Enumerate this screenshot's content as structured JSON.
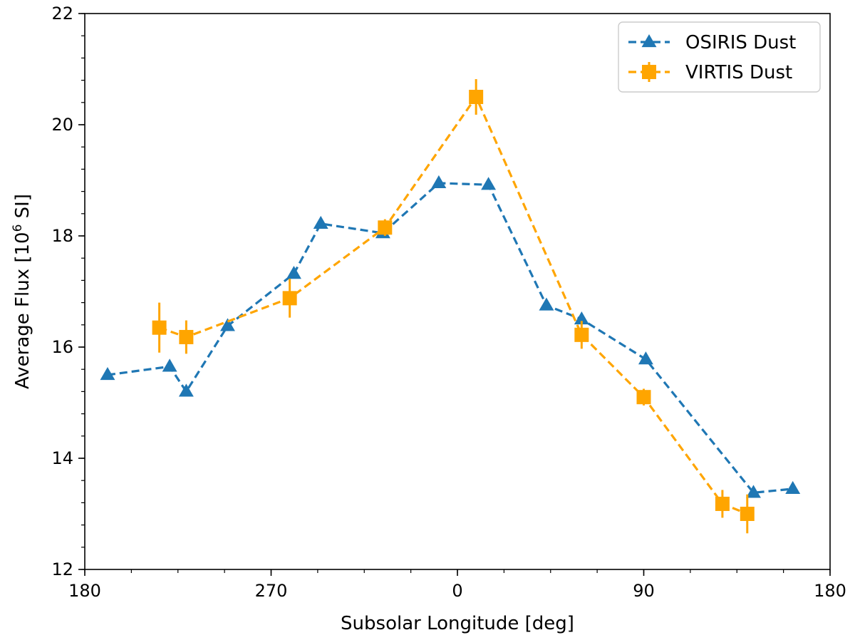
{
  "chart_data": {
    "type": "line",
    "title": "",
    "xlabel": "Subsolar Longitude [deg]",
    "ylabel_main": "Average Flux [10",
    "ylabel_sup": "6",
    "ylabel_end": " SI]",
    "xlim": [
      0,
      360
    ],
    "ylim": [
      12,
      22
    ],
    "x_ticks": [
      {
        "pos": 0,
        "label": "180"
      },
      {
        "pos": 90,
        "label": "270"
      },
      {
        "pos": 180,
        "label": "0"
      },
      {
        "pos": 270,
        "label": "90"
      },
      {
        "pos": 360,
        "label": "180"
      }
    ],
    "x_minor_step": 22.5,
    "y_ticks": [
      12,
      14,
      16,
      18,
      20,
      22
    ],
    "y_minor_step": 0.4,
    "legend_position": "top-right",
    "series": [
      {
        "name": "OSIRIS Dust",
        "color": "#1f77b4",
        "marker": "triangle",
        "x": [
          11,
          41,
          49,
          69,
          101,
          114,
          144,
          171,
          195,
          223,
          240,
          271,
          323,
          342
        ],
        "y": [
          15.5,
          15.65,
          15.2,
          16.38,
          17.32,
          18.22,
          18.05,
          18.95,
          18.92,
          16.75,
          16.5,
          15.78,
          13.38,
          13.45
        ]
      },
      {
        "name": "VIRTIS Dust",
        "color": "#ffa500",
        "marker": "square",
        "x": [
          36,
          49,
          99,
          145,
          189,
          240,
          270,
          308,
          320
        ],
        "y": [
          16.35,
          16.18,
          16.88,
          18.15,
          20.5,
          16.22,
          15.1,
          13.18,
          13.0
        ],
        "yerr": [
          0.45,
          0.3,
          0.35,
          0.15,
          0.32,
          0.25,
          0.15,
          0.25,
          0.35
        ]
      }
    ]
  }
}
